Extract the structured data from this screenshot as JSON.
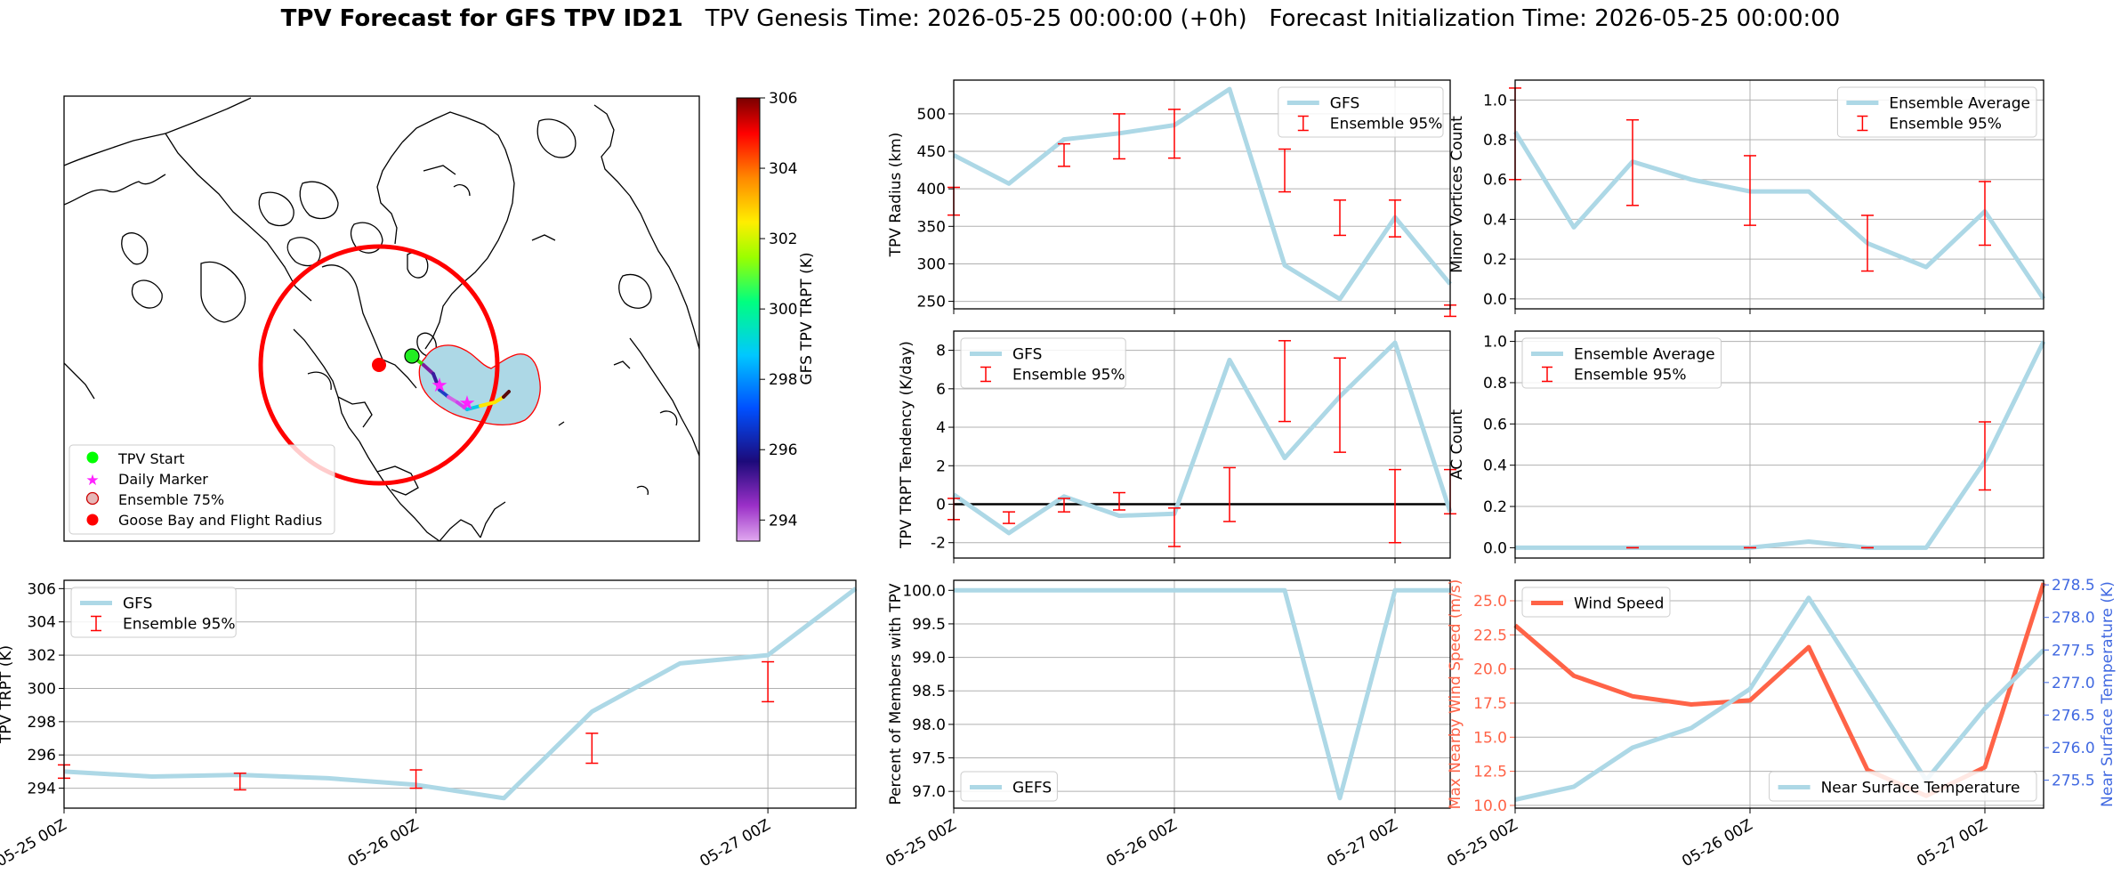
{
  "header": {
    "title_bold": "TPV Forecast for GFS TPV ID21",
    "genesis": "TPV Genesis Time: 2026-05-25 00:00:00 (+0h)",
    "init": "Forecast Initialization Time: 2026-05-25 00:00:00"
  },
  "colors": {
    "series": "#add8e6",
    "ensemble": "#ff0000",
    "wind": "#ff6347",
    "temp_axis": "#4169e1",
    "grid": "#b0b0b0"
  },
  "map": {
    "colorbar_label": "GFS TPV TRPT (K)",
    "colorbar_ticks": [
      294,
      296,
      298,
      300,
      302,
      304,
      306
    ],
    "colorbar_range": [
      293.4,
      306.0
    ],
    "legend": [
      "TPV Start",
      "Daily Marker",
      "Ensemble 75%",
      "Goose Bay and Flight Radius"
    ],
    "track_colors": [
      "#39e600",
      "#7b1fa2",
      "#3a1c9e",
      "#1f3fc4",
      "#d264e6",
      "#cc44ee",
      "#00c8e6",
      "#ffe600",
      "#ffe600",
      "#5a0b0b"
    ]
  },
  "chart_data": [
    {
      "id": "radius",
      "type": "line",
      "ylabel": "TPV Radius (km)",
      "x": [
        0,
        0.25,
        0.5,
        0.75,
        1.0,
        1.25,
        1.5,
        1.75,
        2.0,
        2.25
      ],
      "series": [
        {
          "name": "GFS",
          "values": [
            445,
            407,
            466,
            474,
            485,
            533,
            298,
            253,
            362,
            273
          ]
        }
      ],
      "error_bars": {
        "name": "Ensemble 95%",
        "x": [
          0,
          0.5,
          0.75,
          1.0,
          1.5,
          1.75,
          2.0,
          2.25
        ],
        "low": [
          365,
          430,
          440,
          441,
          396,
          338,
          336,
          230
        ],
        "high": [
          402,
          460,
          500,
          506,
          453,
          385,
          385,
          245
        ]
      },
      "ylim": [
        240,
        545
      ],
      "yticks": [
        250,
        300,
        350,
        400,
        450,
        500
      ],
      "hline": null,
      "legend_loc": "top-right"
    },
    {
      "id": "minor",
      "type": "line",
      "ylabel": "Minor Vortices Count",
      "x": [
        0,
        0.25,
        0.5,
        0.75,
        1.0,
        1.25,
        1.5,
        1.75,
        2.0,
        2.25
      ],
      "series": [
        {
          "name": "Ensemble Average",
          "values": [
            0.84,
            0.36,
            0.69,
            0.6,
            0.54,
            0.54,
            0.28,
            0.16,
            0.44,
            0.0
          ]
        }
      ],
      "error_bars": {
        "name": "Ensemble 95%",
        "x": [
          0,
          0.5,
          1.0,
          1.5,
          2.0
        ],
        "low": [
          0.6,
          0.47,
          0.37,
          0.14,
          0.27
        ],
        "high": [
          1.06,
          0.9,
          0.72,
          0.42,
          0.59
        ]
      },
      "ylim": [
        -0.05,
        1.1
      ],
      "yticks": [
        0.0,
        0.2,
        0.4,
        0.6,
        0.8,
        1.0
      ],
      "hline": null,
      "legend_loc": "top-right"
    },
    {
      "id": "tendency",
      "type": "line",
      "ylabel": "TPV TRPT Tendency (K/day)",
      "x": [
        0,
        0.25,
        0.5,
        0.75,
        1.0,
        1.25,
        1.5,
        1.75,
        2.0,
        2.25
      ],
      "series": [
        {
          "name": "GFS",
          "values": [
            0.5,
            -1.5,
            0.4,
            -0.6,
            -0.5,
            7.5,
            2.4,
            5.6,
            8.4,
            -0.4
          ]
        }
      ],
      "error_bars": {
        "name": "Ensemble 95%",
        "x": [
          0,
          0.25,
          0.5,
          0.75,
          1.0,
          1.25,
          1.5,
          1.75,
          2.0,
          2.25
        ],
        "low": [
          -0.8,
          -1.0,
          -0.4,
          -0.3,
          -2.2,
          -0.9,
          4.3,
          2.7,
          -2.0,
          -0.5
        ],
        "high": [
          0.3,
          -0.4,
          0.3,
          0.6,
          -0.2,
          1.9,
          8.5,
          7.6,
          1.8,
          1.8
        ]
      },
      "ylim": [
        -2.8,
        9.0
      ],
      "yticks": [
        -2,
        0,
        2,
        4,
        6,
        8
      ],
      "hline": 0,
      "legend_loc": "top-left"
    },
    {
      "id": "ac",
      "type": "line",
      "ylabel": "AC Count",
      "x": [
        0,
        0.25,
        0.5,
        0.75,
        1.0,
        1.25,
        1.5,
        1.75,
        2.0,
        2.25
      ],
      "series": [
        {
          "name": "Ensemble Average",
          "values": [
            0.0,
            0.0,
            0.0,
            0.0,
            0.0,
            0.03,
            0.0,
            0.0,
            0.42,
            1.0
          ]
        }
      ],
      "error_bars": {
        "name": "Ensemble 95%",
        "x": [
          0.5,
          1.0,
          1.5,
          2.0
        ],
        "low": [
          0.0,
          0.0,
          0.0,
          0.28
        ],
        "high": [
          0.0,
          0.0,
          0.0,
          0.61
        ]
      },
      "ylim": [
        -0.05,
        1.05
      ],
      "yticks": [
        0.0,
        0.2,
        0.4,
        0.6,
        0.8,
        1.0
      ],
      "hline": null,
      "legend_loc": "top-left"
    },
    {
      "id": "trpt",
      "type": "line",
      "ylabel": "TPV TRPT (K)",
      "x": [
        0,
        0.25,
        0.5,
        0.75,
        1.0,
        1.25,
        1.5,
        1.75,
        2.0,
        2.25
      ],
      "series": [
        {
          "name": "GFS",
          "values": [
            295.0,
            294.7,
            294.8,
            294.6,
            294.2,
            293.4,
            298.6,
            301.5,
            302.0,
            306.0
          ]
        }
      ],
      "error_bars": {
        "name": "Ensemble 95%",
        "x": [
          0,
          0.5,
          1.0,
          1.5,
          2.0
        ],
        "low": [
          294.6,
          293.9,
          294.0,
          295.5,
          299.2
        ],
        "high": [
          295.4,
          294.9,
          295.1,
          297.3,
          301.6
        ]
      },
      "ylim": [
        292.8,
        306.5
      ],
      "yticks": [
        294,
        296,
        298,
        300,
        302,
        304,
        306
      ],
      "hline": null,
      "legend_loc": "top-left"
    },
    {
      "id": "members",
      "type": "line",
      "ylabel": "Percent of Members with TPV",
      "x": [
        0,
        0.25,
        0.5,
        0.75,
        1.0,
        1.25,
        1.5,
        1.75,
        2.0,
        2.25
      ],
      "series": [
        {
          "name": "GEFS",
          "values": [
            100,
            100,
            100,
            100,
            100,
            100,
            100,
            96.9,
            100,
            100
          ]
        }
      ],
      "error_bars": null,
      "ylim": [
        96.75,
        100.15
      ],
      "yticks": [
        97.0,
        97.5,
        98.0,
        98.5,
        99.0,
        99.5,
        100.0
      ],
      "hline": null,
      "legend_loc": "bottom-left"
    },
    {
      "id": "wind",
      "type": "line",
      "ylabel": "Max Nearby Wind Speed (m/s)",
      "y2label": "Near Surface Temperature (K)",
      "x": [
        0,
        0.25,
        0.5,
        0.75,
        1.0,
        1.25,
        1.5,
        1.75,
        2.0,
        2.25
      ],
      "series": [
        {
          "name": "Wind Speed",
          "axis": "left",
          "values": [
            23.2,
            19.5,
            18.0,
            17.4,
            17.7,
            21.6,
            12.6,
            10.7,
            12.8,
            26.3
          ]
        },
        {
          "name": "Near Surface Temperature",
          "axis": "right",
          "values": [
            275.2,
            275.4,
            276.0,
            276.3,
            276.9,
            278.3,
            276.9,
            275.5,
            276.6,
            277.5
          ]
        }
      ],
      "error_bars": null,
      "ylim": [
        9.8,
        26.5
      ],
      "yticks": [
        10.0,
        12.5,
        15.0,
        17.5,
        20.0,
        22.5,
        25.0
      ],
      "y2lim": [
        275.07,
        278.57
      ],
      "y2ticks": [
        275.5,
        276.0,
        276.5,
        277.0,
        277.5,
        278.0,
        278.5
      ],
      "hline": null,
      "legend_loc": "top-left / bottom-right"
    }
  ],
  "xaxis": {
    "domain": [
      0,
      2.25
    ],
    "ticks": [
      0,
      1,
      2
    ],
    "tick_labels": [
      "05-25 00Z",
      "05-26 00Z",
      "05-27 00Z"
    ]
  }
}
